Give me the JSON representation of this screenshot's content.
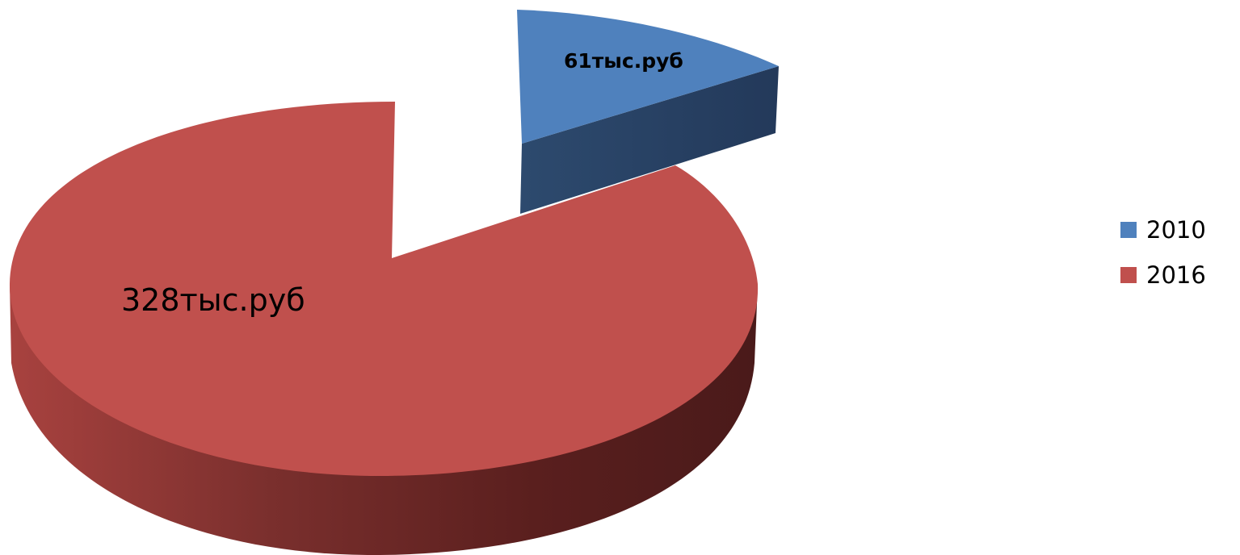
{
  "chart_data": {
    "type": "pie",
    "title": "",
    "series": [
      {
        "name": "2010",
        "label": "61тыс.руб",
        "value": 61,
        "color": "#4F81BD",
        "side_color": "#2A4465",
        "exploded": true
      },
      {
        "name": "2016",
        "label": "328тыс.руб",
        "value": 328,
        "color": "#C0504D",
        "side_color": "#6E2B2A",
        "exploded": false
      }
    ],
    "legend_position": "right"
  }
}
